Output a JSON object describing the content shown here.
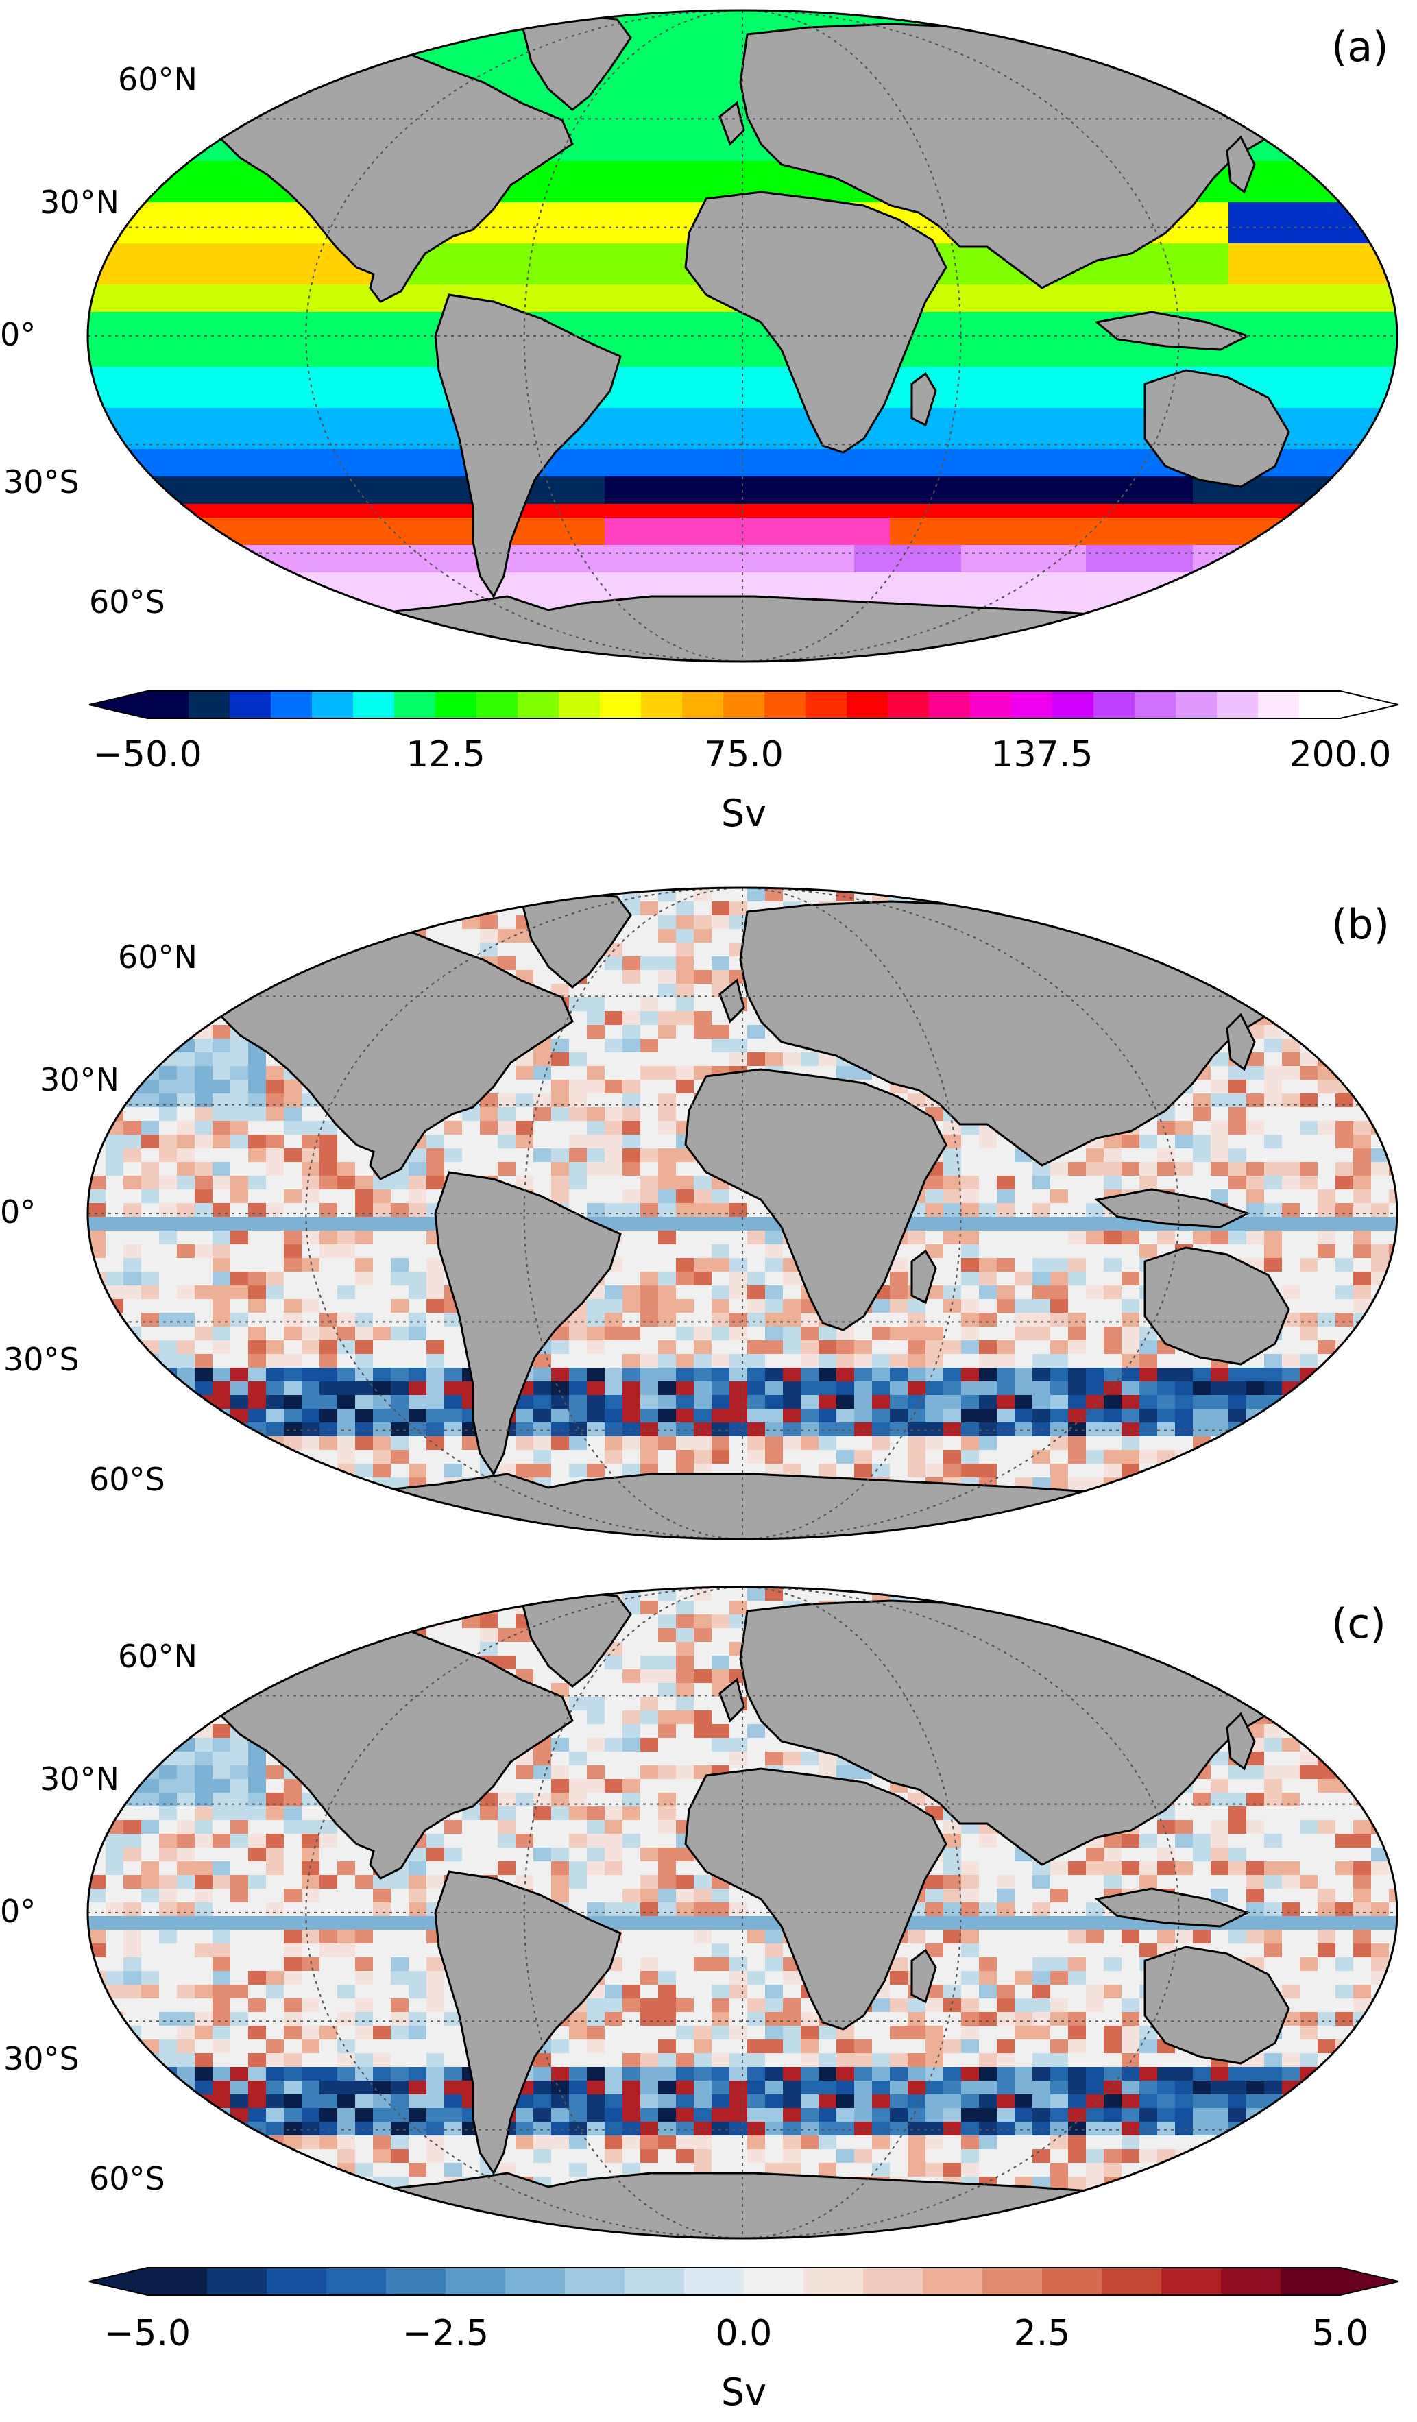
{
  "panels": [
    {
      "id": "a",
      "label": "(a)",
      "style": "total"
    },
    {
      "id": "b",
      "label": "(b)",
      "style": "diff1"
    },
    {
      "id": "c",
      "label": "(c)",
      "style": "diff2"
    }
  ],
  "lat_labels": [
    "60°N",
    "30°N",
    "0°",
    "30°S",
    "60°S"
  ],
  "colorbar_top": {
    "ticks": [
      "−50.0",
      "12.5",
      "75.0",
      "137.5",
      "200.0"
    ],
    "unit": "Sv",
    "range": [
      -50,
      200
    ],
    "colors": [
      "#00004d",
      "#002a5c",
      "#0030c8",
      "#0070ff",
      "#00b7ff",
      "#00ffee",
      "#00ff66",
      "#00ff00",
      "#33ff00",
      "#80ff00",
      "#ccff00",
      "#ffff00",
      "#ffd200",
      "#ffae00",
      "#ff8800",
      "#ff5a00",
      "#ff2d00",
      "#ff0000",
      "#ff0040",
      "#ff0090",
      "#ff00cc",
      "#ee00ee",
      "#d000ff",
      "#c040ff",
      "#d070ff",
      "#e098ff",
      "#f0c0ff",
      "#fde8ff",
      "#ffffff"
    ]
  },
  "colorbar_bottom": {
    "ticks": [
      "−5.0",
      "−2.5",
      "0.0",
      "2.5",
      "5.0"
    ],
    "unit": "Sv",
    "range": [
      -5,
      5
    ],
    "colors": [
      "#0a1e4a",
      "#103775",
      "#15509e",
      "#2166ac",
      "#3a7fba",
      "#5a99c8",
      "#7bb2d6",
      "#9fc8e2",
      "#c0dbea",
      "#dde9f0",
      "#f0f0f0",
      "#f6e2dc",
      "#f3cbbd",
      "#eeaf97",
      "#e48c72",
      "#d66a50",
      "#c64635",
      "#b12025",
      "#8f0c20",
      "#67001f"
    ]
  },
  "colors": {
    "land": "#a5a5a5",
    "coast": "#000000",
    "grid": "#555555"
  }
}
